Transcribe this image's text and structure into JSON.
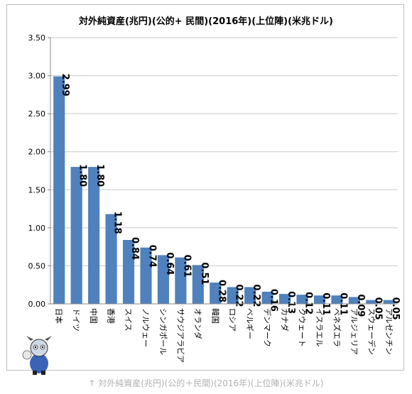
{
  "chart_data": {
    "type": "bar",
    "title": "対外純資産(兆円)(公的+ 民間)(2016年)(上位陣)(米兆ドル)",
    "categories": [
      "日本",
      "ドイツ",
      "中国",
      "香港",
      "スイス",
      "ノルウェー",
      "シンガポール",
      "サウジアラビア",
      "オランダ",
      "韓国",
      "ロシア",
      "ベルギー",
      "デンマーク",
      "カナダ",
      "クウェート",
      "イスラエル",
      "ベネズエラ",
      "アルジェリア",
      "スウェーデン",
      "アルゼンチン"
    ],
    "values": [
      2.99,
      1.8,
      1.8,
      1.18,
      0.84,
      0.74,
      0.64,
      0.61,
      0.51,
      0.28,
      0.22,
      0.22,
      0.16,
      0.13,
      0.12,
      0.11,
      0.11,
      0.09,
      0.05,
      0.05
    ],
    "value_labels": [
      "2.99",
      "1.80",
      "1.80",
      "1.18",
      "0.84",
      "0.74",
      "0.64",
      "0.61",
      "0.51",
      "0.28",
      "0.22",
      "0.22",
      "0.16",
      "0.13",
      "0.12",
      "0.11",
      "0.11",
      "0.09",
      "0.05",
      "0.05"
    ],
    "ylim": [
      0,
      3.5
    ],
    "yticks": [
      "0.00",
      "0.50",
      "1.00",
      "1.50",
      "2.00",
      "2.50",
      "3.00",
      "3.50"
    ],
    "grid": true,
    "bar_color": "#4f81bd"
  },
  "caption": "↑ 対外純資産(兆円)(公的＋民間)(2016年)(上位陣)(米兆ドル)"
}
